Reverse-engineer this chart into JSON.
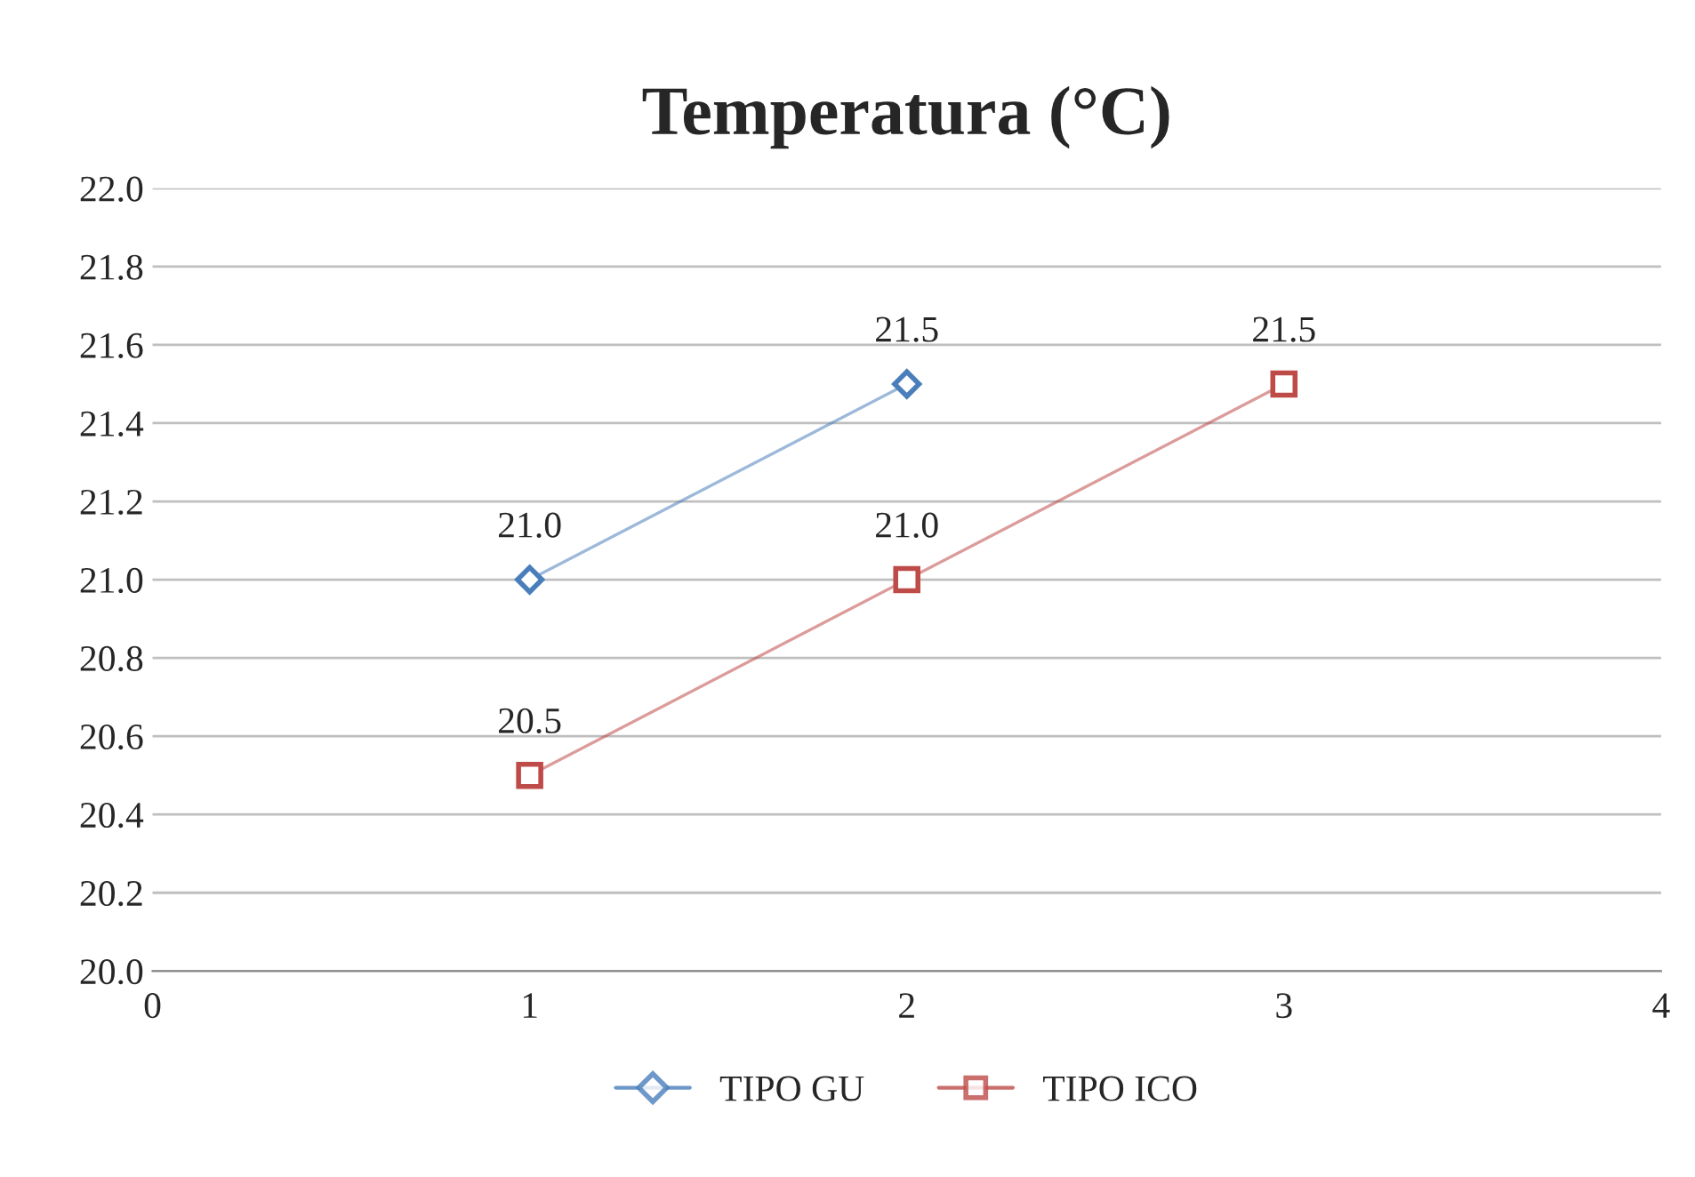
{
  "chart_data": {
    "type": "line",
    "title": "Temperatura (°C)",
    "xlim": [
      0,
      4
    ],
    "xticks": [
      0,
      1,
      2,
      3,
      4
    ],
    "ylim": [
      20.0,
      22.0
    ],
    "yticks": [
      {
        "value": 20.0,
        "label": "20.0"
      },
      {
        "value": 20.2,
        "label": "20.2"
      },
      {
        "value": 20.4,
        "label": "20.4"
      },
      {
        "value": 20.6,
        "label": "20.6"
      },
      {
        "value": 20.8,
        "label": "20.8"
      },
      {
        "value": 21.0,
        "label": "21.0"
      },
      {
        "value": 21.2,
        "label": "21.2"
      },
      {
        "value": 21.4,
        "label": "21.4"
      },
      {
        "value": 21.6,
        "label": "21.6"
      },
      {
        "value": 21.8,
        "label": "21.8"
      },
      {
        "value": 22.0,
        "label": "22.0"
      }
    ],
    "grid": "y",
    "legend": "bottom",
    "line_style": "solid",
    "series": [
      {
        "name": "TIPO GU",
        "color": "#4a7ebb",
        "marker": "diamond",
        "x": [
          1,
          2
        ],
        "values": [
          21.0,
          21.5
        ],
        "value_labels": [
          "21.0",
          "21.5"
        ]
      },
      {
        "name": "TIPO ICO",
        "color": "#be4b48",
        "marker": "square",
        "x": [
          1,
          2,
          3
        ],
        "values": [
          20.5,
          21.0,
          21.5
        ],
        "value_labels": [
          "20.5",
          "21.0",
          "21.5"
        ]
      }
    ]
  }
}
